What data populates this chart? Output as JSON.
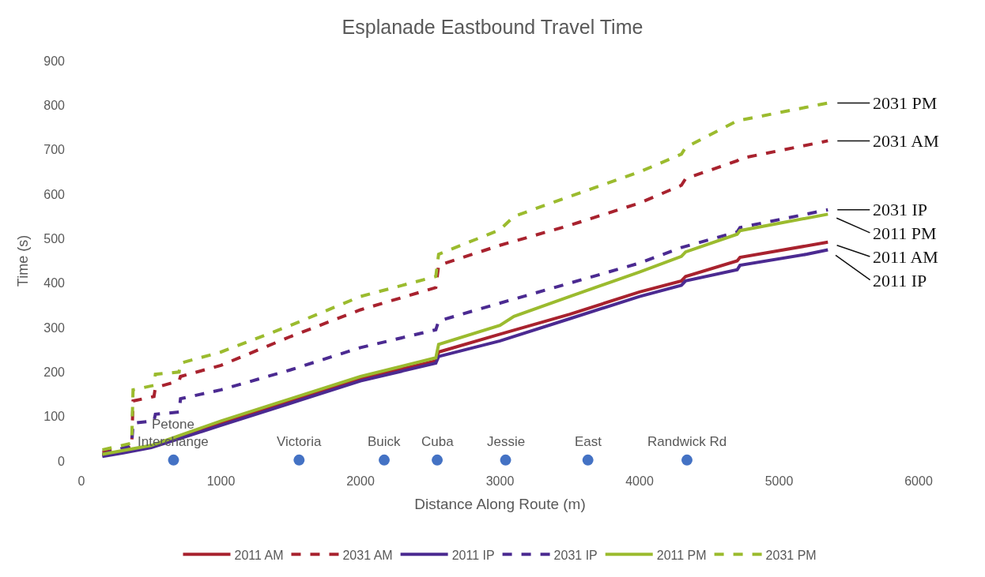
{
  "chart_data": {
    "type": "line",
    "title": "Esplanade Eastbound Travel Time",
    "xlabel": "Distance Along Route (m)",
    "ylabel": "Time (s)",
    "xlim": [
      0,
      6000
    ],
    "xticks": [
      0,
      1000,
      2000,
      3000,
      4000,
      5000,
      6000
    ],
    "ylim": [
      0,
      900
    ],
    "yticks": [
      0,
      100,
      200,
      300,
      400,
      500,
      600,
      700,
      800,
      900
    ],
    "grid": false,
    "legend": "bottom",
    "marker": "none",
    "series": [
      {
        "name": "2011 AM",
        "color": "#a8222e",
        "line_style": "solid",
        "x": [
          150,
          500,
          1000,
          1500,
          2000,
          2540,
          2560,
          3000,
          3500,
          4000,
          4300,
          4330,
          4700,
          4720,
          5350
        ],
        "values": [
          12,
          32,
          85,
          135,
          185,
          225,
          245,
          285,
          330,
          380,
          405,
          415,
          450,
          458,
          492
        ]
      },
      {
        "name": "2031 AM",
        "color": "#a8222e",
        "line_style": "dashed",
        "x": [
          150,
          360,
          370,
          520,
          530,
          700,
          710,
          1000,
          1500,
          2000,
          2540,
          2560,
          3000,
          3500,
          4000,
          4300,
          4330,
          4700,
          4720,
          5350
        ],
        "values": [
          20,
          30,
          135,
          145,
          165,
          180,
          190,
          215,
          280,
          340,
          390,
          440,
          485,
          530,
          580,
          620,
          635,
          675,
          680,
          720
        ]
      },
      {
        "name": "2011 IP",
        "color": "#4b2a91",
        "line_style": "solid",
        "x": [
          150,
          300,
          500,
          700,
          1000,
          1500,
          2000,
          2540,
          2560,
          3000,
          3500,
          4000,
          4300,
          4330,
          4700,
          4720,
          5200,
          5350
        ],
        "values": [
          10,
          18,
          30,
          50,
          80,
          130,
          180,
          220,
          235,
          270,
          320,
          370,
          395,
          405,
          430,
          440,
          465,
          475
        ]
      },
      {
        "name": "2031 IP",
        "color": "#4b2a91",
        "line_style": "dashed",
        "x": [
          150,
          360,
          370,
          520,
          530,
          700,
          710,
          1000,
          1500,
          2000,
          2540,
          2560,
          3000,
          3500,
          4000,
          4300,
          4700,
          4720,
          5350
        ],
        "values": [
          15,
          35,
          85,
          90,
          105,
          110,
          140,
          160,
          205,
          255,
          295,
          315,
          355,
          400,
          445,
          480,
          515,
          525,
          565
        ]
      },
      {
        "name": "2011 PM",
        "color": "#9bbb2e",
        "line_style": "solid",
        "x": [
          150,
          500,
          1000,
          1500,
          2000,
          2540,
          2560,
          3000,
          3100,
          3500,
          4000,
          4300,
          4330,
          4700,
          4720,
          5350
        ],
        "values": [
          15,
          35,
          90,
          140,
          190,
          232,
          262,
          305,
          325,
          370,
          425,
          460,
          470,
          510,
          518,
          555
        ]
      },
      {
        "name": "2031 PM",
        "color": "#9bbb2e",
        "line_style": "dashed",
        "x": [
          150,
          360,
          370,
          520,
          530,
          700,
          710,
          1000,
          1500,
          2000,
          2540,
          2560,
          3000,
          3100,
          3500,
          4000,
          4300,
          4330,
          4700,
          5350
        ],
        "values": [
          25,
          40,
          160,
          170,
          195,
          200,
          220,
          245,
          305,
          370,
          415,
          465,
          520,
          550,
          595,
          650,
          690,
          705,
          765,
          805
        ]
      },
      {
        "type": "scatter",
        "color": "#4472c4",
        "marker": "circle",
        "x": [
          660,
          1560,
          2170,
          2550,
          3040,
          3630,
          4340
        ],
        "values": [
          2,
          2,
          2,
          2,
          2,
          2,
          2
        ]
      }
    ],
    "annotations": [
      {
        "text": "2031 PM",
        "x": 5350,
        "y": 805
      },
      {
        "text": "2031 AM",
        "x": 5350,
        "y": 720
      },
      {
        "text": "2031 IP",
        "x": 5350,
        "y": 565
      },
      {
        "text": "2011 PM",
        "x": 5350,
        "y": 555
      },
      {
        "text": "2011 AM",
        "x": 5350,
        "y": 492
      },
      {
        "text": "2011 IP",
        "x": 5350,
        "y": 475
      },
      {
        "text": "Petone\nInterchange",
        "x": 660,
        "y": 2
      },
      {
        "text": "Victoria",
        "x": 1560,
        "y": 2
      },
      {
        "text": "Buick",
        "x": 2170,
        "y": 2
      },
      {
        "text": "Cuba",
        "x": 2550,
        "y": 2
      },
      {
        "text": "Jessie",
        "x": 3040,
        "y": 2
      },
      {
        "text": "East",
        "x": 3630,
        "y": 2
      },
      {
        "text": "Randwick Rd",
        "x": 4340,
        "y": 2
      }
    ]
  }
}
